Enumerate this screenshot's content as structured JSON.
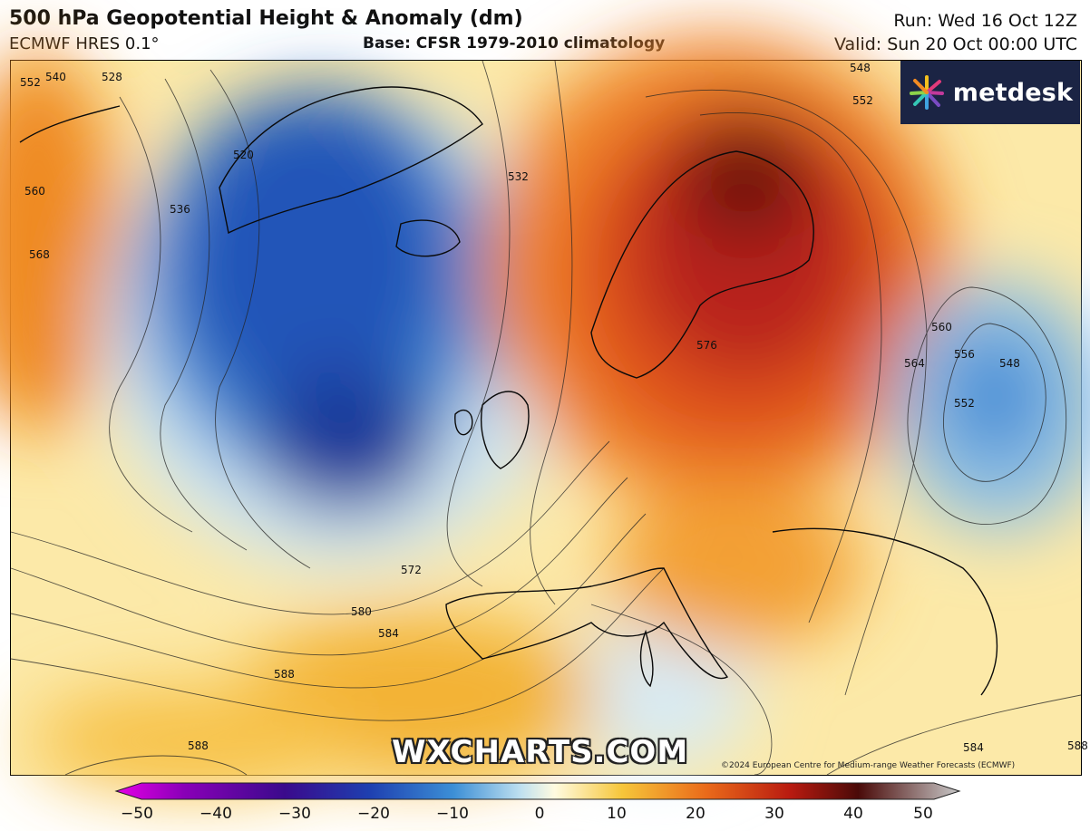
{
  "header": {
    "title": "500 hPa Geopotential Height & Anomaly (dm)",
    "model": "ECMWF HRES 0.1°",
    "base": "Base: CFSR 1979-2010 climatology",
    "run": "Run: Wed 16 Oct 12Z",
    "valid": "Valid: Sun 20 Oct 00:00 UTC"
  },
  "logo": {
    "text": "metdesk",
    "icon": "metdesk-burst-icon"
  },
  "watermark": "WXCHARTS.COM",
  "copyright": "©2024 European Centre for Medium-range Weather Forecasts (ECMWF)",
  "contour_labels": [
    "552",
    "540",
    "528",
    "520",
    "560",
    "568",
    "536",
    "532",
    "548",
    "552",
    "576",
    "564",
    "560",
    "556",
    "548",
    "552",
    "572",
    "580",
    "584",
    "588",
    "588",
    "584",
    "588"
  ],
  "colorbar": {
    "ticks": [
      "−50",
      "−40",
      "−30",
      "−20",
      "−10",
      "0",
      "10",
      "20",
      "30",
      "40",
      "50"
    ],
    "colors": [
      "#e600e6",
      "#8a00b8",
      "#3a0a8c",
      "#1e3fb0",
      "#3c8fd6",
      "#bfe0f0",
      "#fffbe0",
      "#f6c63a",
      "#ea6a1a",
      "#b81a10",
      "#4a0a08",
      "#c8c8c8"
    ]
  }
}
